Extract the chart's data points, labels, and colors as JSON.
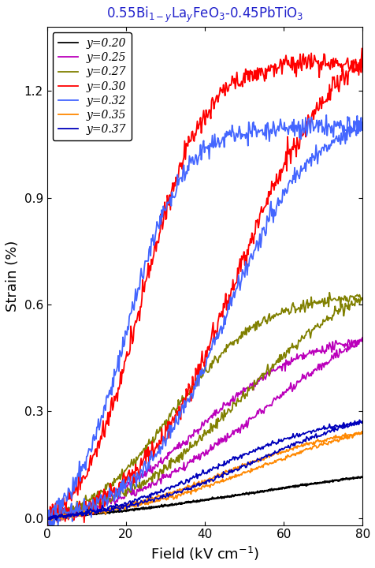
{
  "title": "0.55Bi$_{1-y}$La$_y$FeO$_3$-0.45PbTiO$_3$",
  "title_color": "#2222CC",
  "xlabel": "Field (kV cm$^{-1}$)",
  "ylabel": "Strain (%)",
  "xlim": [
    0,
    80
  ],
  "ylim": [
    -0.02,
    1.38
  ],
  "curves": [
    {
      "label": "y=0.20",
      "color": "#000000",
      "max_field": 80,
      "peak_strain": 0.115,
      "return_strain": 0.06,
      "peak_field": 80,
      "shape": "linear_thin",
      "k_up": 0.04,
      "x0_up": 50,
      "k_dn": 0.03,
      "x0_dn": 55
    },
    {
      "label": "y=0.25",
      "color": "#BB00BB",
      "max_field": 80,
      "peak_strain": 0.5,
      "return_strain": 0.12,
      "peak_field": 72,
      "shape": "medium_hysteresis",
      "k_up": 0.07,
      "x0_up": 38,
      "k_dn": 0.05,
      "x0_dn": 55
    },
    {
      "label": "y=0.27",
      "color": "#808000",
      "max_field": 80,
      "peak_strain": 0.62,
      "return_strain": 0.13,
      "peak_field": 68,
      "shape": "medium_hysteresis",
      "k_up": 0.09,
      "x0_up": 32,
      "k_dn": 0.06,
      "x0_dn": 50
    },
    {
      "label": "y=0.30",
      "color": "#FF0000",
      "max_field": 80,
      "peak_strain": 1.28,
      "return_strain": 0.22,
      "peak_field": 72,
      "shape": "large_hysteresis",
      "k_up": 0.13,
      "x0_up": 24,
      "k_dn": 0.08,
      "x0_dn": 48
    },
    {
      "label": "y=0.32",
      "color": "#4466FF",
      "max_field": 80,
      "peak_strain": 1.1,
      "return_strain": 0.2,
      "peak_field": 76,
      "shape": "large_hysteresis",
      "k_up": 0.14,
      "x0_up": 20,
      "k_dn": 0.09,
      "x0_dn": 45
    },
    {
      "label": "y=0.35",
      "color": "#FF8800",
      "max_field": 80,
      "peak_strain": 0.24,
      "return_strain": 0.1,
      "peak_field": 80,
      "shape": "small_hysteresis",
      "k_up": 0.06,
      "x0_up": 45,
      "k_dn": 0.05,
      "x0_dn": 55
    },
    {
      "label": "y=0.37",
      "color": "#0000BB",
      "max_field": 80,
      "peak_strain": 0.27,
      "return_strain": 0.12,
      "peak_field": 80,
      "shape": "small_hysteresis",
      "k_up": 0.065,
      "x0_up": 42,
      "k_dn": 0.055,
      "x0_dn": 52
    }
  ],
  "legend_loc": "upper left",
  "tick_label_size": 11,
  "axis_label_size": 13,
  "lw": 1.3
}
